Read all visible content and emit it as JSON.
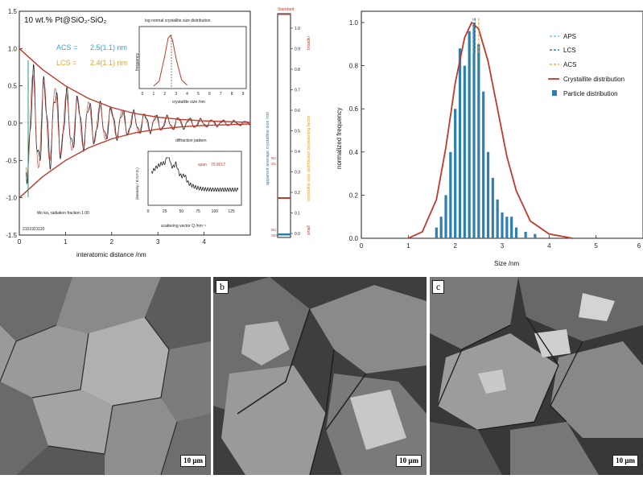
{
  "colors": {
    "acs": "#29a7e0",
    "lcs": "#e8a22b",
    "model": "#c0392b",
    "data": "#222222",
    "bars": "#2e7fb0",
    "aps_line": "#5bc0eb",
    "lcs_line": "#1f5f9f",
    "acs_line": "#e8a22b"
  },
  "panel_a": {
    "title": "10 wt.% Pt@SiO₂-SiO₂",
    "acs_label": "ACS =",
    "acs_value": "2.5(1.1) nm",
    "lcs_label": "LCS =",
    "lcs_value": "2.4(1.1) nm",
    "radiation_note": "Mo kα₁ radiation fraction 1.00",
    "sample_id": "2101921120",
    "xlabel": "interatomic distance /nm",
    "x_ticks": [
      "0",
      "1",
      "2",
      "3",
      "4"
    ],
    "y_ticks": [
      "1.5",
      "1.0",
      "0.5",
      "0.0",
      "-0.5",
      "-1.0",
      "-1.5"
    ],
    "inset1": {
      "title": "log normal crystallite size distribution",
      "ylabel": "frequency",
      "xlabel": "crystallite size /nm",
      "x_ticks": [
        "0",
        "1",
        "2",
        "3",
        "4",
        "5",
        "6",
        "7",
        "8",
        "9"
      ]
    },
    "inset2": {
      "title": "diffraction pattern",
      "ylabel": "(intensity /\nB.S.F.D.)",
      "xlabel": "scattering vector Q /nm⁻¹",
      "x_ticks": [
        "0",
        "25",
        "50",
        "75",
        "100",
        "125"
      ],
      "annotation_label": "span",
      "annotation_value": "70.8017"
    }
  },
  "colorbar": {
    "top_label": "Standard",
    "ticks": [
      "1.0",
      "0.9",
      "0.8",
      "0.7",
      "0.6",
      "0.5",
      "0.4",
      "0.3",
      "0.2",
      "0.1",
      "0.0"
    ],
    "left_axis_label": "apparent average crystalline size /nm",
    "right_axis_label": "crystallite size distribution broadening factor",
    "right_top_word": "broader",
    "right_bottom_word": "small",
    "marker_labels": [
      "NC",
      "SC",
      "NC",
      "SiO"
    ]
  },
  "chart_data": [
    {
      "type": "line",
      "title": "10 wt.% Pt@SiO₂-SiO₂",
      "xlabel": "interatomic distance /nm",
      "ylabel": "",
      "xlim": [
        0,
        5
      ],
      "ylim": [
        -1.5,
        1.5
      ],
      "series": [
        {
          "name": "",
          "x": [
            0.0,
            0.5,
            1.0,
            1.5,
            2.0,
            2.5,
            3.0,
            3.5,
            4.0,
            4.5,
            5.0
          ],
          "values": [
            1.0,
            0.72,
            0.5,
            0.33,
            0.21,
            0.13,
            0.08,
            0.05,
            0.03,
            0.02,
            0.01
          ]
        },
        {
          "name": "",
          "x": [
            0.0,
            0.5,
            1.0,
            1.5,
            2.0,
            2.5,
            3.0,
            3.5,
            4.0,
            4.5,
            5.0
          ],
          "values": [
            -1.0,
            -0.72,
            -0.5,
            -0.33,
            -0.21,
            -0.13,
            -0.08,
            -0.05,
            -0.03,
            -0.02,
            -0.01
          ]
        }
      ]
    },
    {
      "type": "line",
      "title": "log normal crystallite size distribution",
      "xlabel": "crystallite size /nm",
      "ylabel": "frequency",
      "xlim": [
        0,
        9
      ],
      "series": [
        {
          "name": "",
          "x": [
            1.0,
            1.5,
            2.0,
            2.3,
            2.5,
            2.7,
            3.0,
            3.5,
            4.0
          ],
          "values": [
            0.0,
            0.1,
            0.6,
            0.95,
            1.0,
            0.9,
            0.55,
            0.12,
            0.02
          ]
        }
      ]
    },
    {
      "type": "line",
      "title": "diffraction pattern",
      "xlabel": "scattering vector Q /nm⁻¹",
      "ylabel": "(intensity / B.S.F.D.)",
      "xlim": [
        0,
        140
      ],
      "series": [
        {
          "name": "",
          "x": [
            5,
            15,
            20,
            27,
            30,
            35,
            42,
            50,
            60,
            75,
            90,
            110,
            130
          ],
          "values": [
            0.5,
            0.75,
            0.9,
            0.7,
            1.0,
            0.8,
            0.7,
            0.6,
            0.45,
            0.4,
            0.35,
            0.32,
            0.3
          ]
        }
      ]
    },
    {
      "type": "bar",
      "title": "",
      "xlabel": "Size /nm",
      "ylabel": "normalized frequency",
      "xlim": [
        0,
        6
      ],
      "ylim": [
        0,
        1.0
      ],
      "x_ticks": [
        "0",
        "1",
        "2",
        "3",
        "4",
        "5",
        "6"
      ],
      "y_ticks": [
        "0.0",
        "0.2",
        "0.4",
        "0.6",
        "0.8",
        "1.0"
      ],
      "legend_position": "top-right",
      "legend": [
        "APS",
        "LCS",
        "ACS",
        "Crystallite distribution",
        "Particle distribution"
      ],
      "vlines": {
        "APS": 2.38,
        "LCS": 2.42,
        "ACS": 2.5
      },
      "series": [
        {
          "name": "Particle distribution",
          "x": [
            1.6,
            1.7,
            1.8,
            1.9,
            2.0,
            2.1,
            2.2,
            2.3,
            2.4,
            2.5,
            2.6,
            2.7,
            2.8,
            2.9,
            3.0,
            3.1,
            3.2,
            3.3,
            3.5,
            3.7
          ],
          "values": [
            0.05,
            0.1,
            0.2,
            0.4,
            0.6,
            0.88,
            0.8,
            0.96,
            1.0,
            0.9,
            0.68,
            0.4,
            0.28,
            0.18,
            0.12,
            0.1,
            0.1,
            0.05,
            0.03,
            0.02
          ]
        },
        {
          "name": "Crystallite distribution",
          "x": [
            1.0,
            1.3,
            1.6,
            1.8,
            2.0,
            2.2,
            2.35,
            2.5,
            2.7,
            2.9,
            3.1,
            3.3,
            3.6,
            4.0,
            4.5
          ],
          "values": [
            0.0,
            0.03,
            0.18,
            0.42,
            0.72,
            0.93,
            1.0,
            0.97,
            0.82,
            0.6,
            0.38,
            0.22,
            0.08,
            0.02,
            0.0
          ]
        }
      ]
    }
  ],
  "sem_panels": [
    {
      "label": "",
      "scale_bar": "10 μm"
    },
    {
      "label": "b",
      "scale_bar": "10 μm"
    },
    {
      "label": "c",
      "scale_bar": "10 μm"
    }
  ]
}
